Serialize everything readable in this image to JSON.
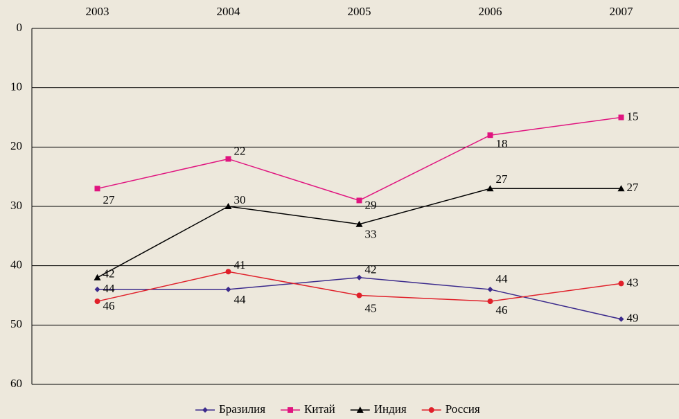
{
  "chart_data": {
    "type": "line",
    "categories": [
      "2003",
      "2004",
      "2005",
      "2006",
      "2007"
    ],
    "series": [
      {
        "name": "Бразилия",
        "color": "#3b2a8c",
        "marker": "diamond",
        "values": [
          44,
          44,
          42,
          44,
          49
        ]
      },
      {
        "name": "Китай",
        "color": "#e0147f",
        "marker": "square",
        "values": [
          27,
          22,
          29,
          18,
          15
        ]
      },
      {
        "name": "Индия",
        "color": "#000000",
        "marker": "triangle",
        "values": [
          42,
          30,
          33,
          27,
          27
        ]
      },
      {
        "name": "Россия",
        "color": "#e0202a",
        "marker": "circle",
        "values": [
          46,
          41,
          45,
          46,
          43
        ]
      }
    ],
    "ylim": [
      0,
      60
    ],
    "yticks": [
      0,
      10,
      20,
      30,
      40,
      50,
      60
    ],
    "y_inverted": true,
    "grid": true,
    "legend": "bottom"
  }
}
